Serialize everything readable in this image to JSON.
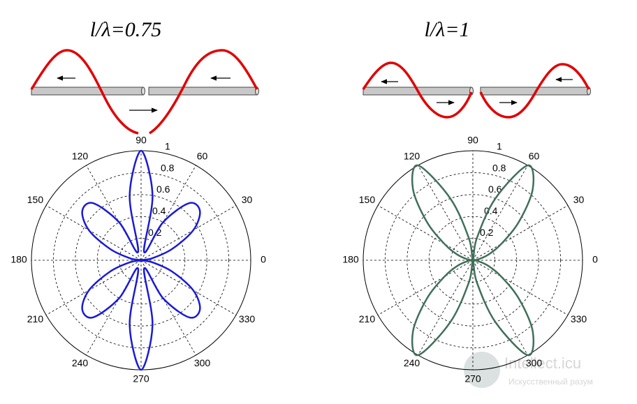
{
  "chart_data": [
    {
      "type": "polar",
      "title": "l/λ=0.75",
      "x": [
        0,
        10,
        20,
        30,
        40,
        50,
        60,
        70,
        80,
        90,
        100,
        110,
        120,
        130,
        140,
        150,
        160,
        170,
        180,
        190,
        200,
        210,
        220,
        230,
        240,
        250,
        260,
        270,
        280,
        290,
        300,
        310,
        320,
        330,
        340,
        350
      ],
      "values": [
        0,
        0.1,
        0.3,
        0.55,
        0.7,
        0.68,
        0.4,
        0.08,
        0.6,
        1.0,
        0.6,
        0.08,
        0.4,
        0.68,
        0.7,
        0.55,
        0.3,
        0.1,
        0,
        0.1,
        0.3,
        0.55,
        0.7,
        0.68,
        0.4,
        0.08,
        0.6,
        1.0,
        0.6,
        0.08,
        0.4,
        0.68,
        0.7,
        0.55,
        0.3,
        0.1
      ],
      "color": "#1a1ad8",
      "ylim": [
        0,
        1
      ],
      "yticks": [
        0.2,
        0.4,
        0.6,
        0.8,
        1
      ],
      "xticks": [
        0,
        30,
        60,
        90,
        120,
        150,
        180,
        210,
        240,
        270,
        300,
        330
      ],
      "grid": true
    },
    {
      "type": "polar",
      "title": "l/λ=1",
      "x": [
        0,
        10,
        20,
        30,
        40,
        50,
        60,
        70,
        80,
        90,
        100,
        110,
        120,
        130,
        140,
        150,
        160,
        170,
        180,
        190,
        200,
        210,
        220,
        230,
        240,
        250,
        260,
        270,
        280,
        290,
        300,
        310,
        320,
        330,
        340,
        350
      ],
      "values": [
        0,
        0.05,
        0.15,
        0.3,
        0.55,
        0.85,
        1.0,
        0.6,
        0.2,
        0,
        0.2,
        0.6,
        1.0,
        0.85,
        0.55,
        0.3,
        0.15,
        0.05,
        0,
        0.05,
        0.15,
        0.3,
        0.55,
        0.85,
        1.0,
        0.6,
        0.2,
        0,
        0.2,
        0.6,
        1.0,
        0.85,
        0.55,
        0.3,
        0.15,
        0.05
      ],
      "color": "#3f6f5a",
      "ylim": [
        0,
        1
      ],
      "yticks": [
        0.2,
        0.4,
        0.6,
        0.8,
        1
      ],
      "xticks": [
        0,
        30,
        60,
        90,
        120,
        150,
        180,
        210,
        240,
        270,
        300,
        330
      ],
      "grid": true
    }
  ],
  "watermark": {
    "title": "Intellect.icu",
    "subtitle": "Искусственный разум"
  }
}
